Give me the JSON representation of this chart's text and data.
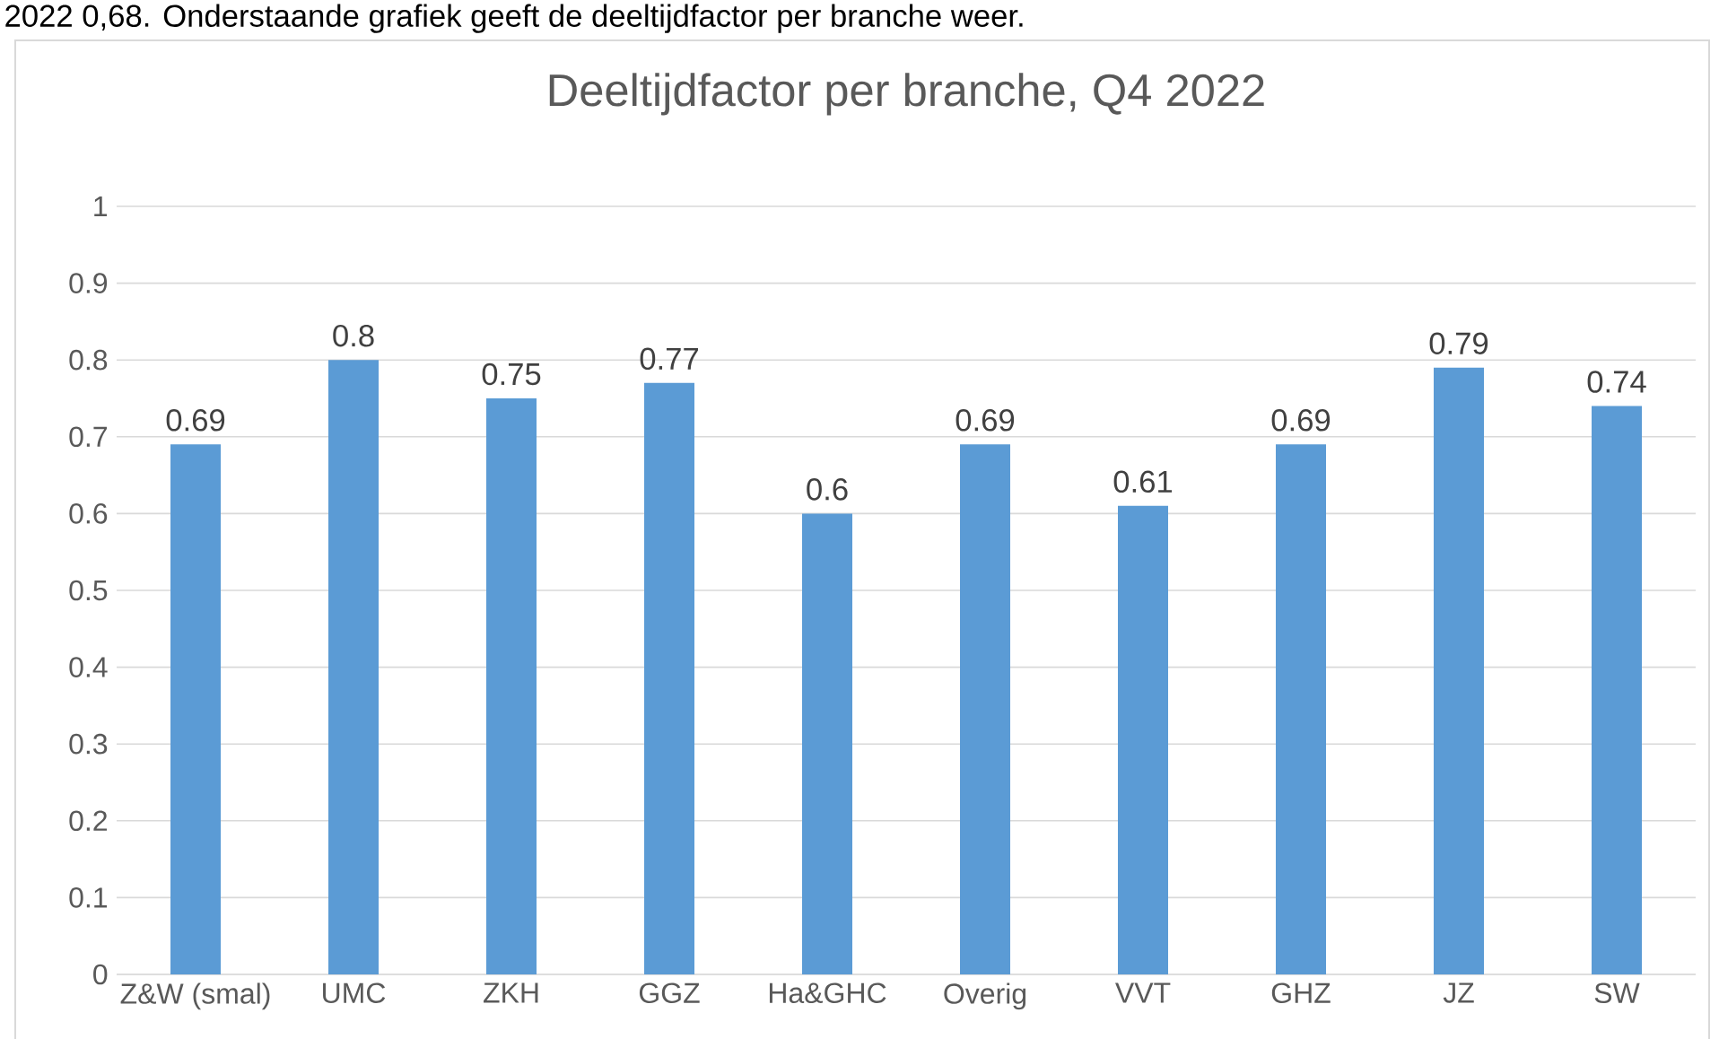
{
  "chart_data": {
    "type": "bar",
    "title": "Deeltijdfactor per branche, Q4 2022",
    "annotations": [
      "2022 0,68. Onderstaande grafiek geeft de deeltijdfactor per branche weer."
    ],
    "categories": [
      "Z&W (smal)",
      "UMC",
      "ZKH",
      "GGZ",
      "Ha&GHC",
      "Overig",
      "VVT",
      "GHZ",
      "JZ",
      "SW"
    ],
    "values": [
      0.69,
      0.8,
      0.75,
      0.77,
      0.6,
      0.69,
      0.61,
      0.69,
      0.79,
      0.74
    ],
    "color": "#5b9bd5",
    "ylim": [
      0,
      1
    ],
    "yticks": [
      0,
      0.1,
      0.2,
      0.3,
      0.4,
      0.5,
      0.6,
      0.7,
      0.8,
      0.9,
      1
    ],
    "grid": "y",
    "data_labels": true
  }
}
